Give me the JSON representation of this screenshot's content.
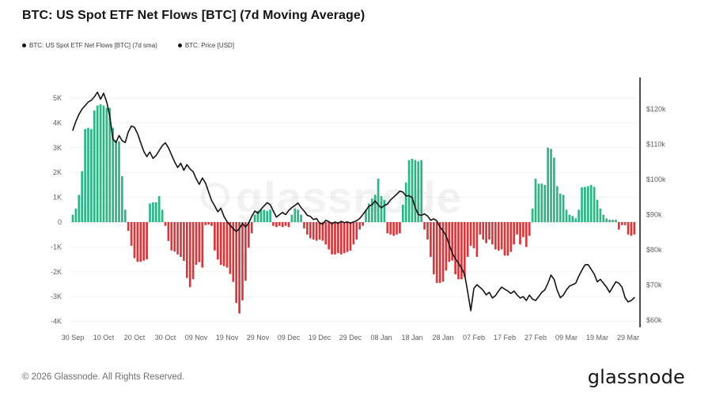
{
  "header": {
    "title": "BTC: US Spot ETF Net Flows [BTC] (7d Moving Average)"
  },
  "legend": [
    {
      "label": "BTC: US Spot ETF Net Flows [BTC] (7d sma)",
      "marker_color": "#111111"
    },
    {
      "label": "BTC: Price [USD]",
      "marker_color": "#111111"
    }
  ],
  "watermark": {
    "text": "glassnode"
  },
  "footer": {
    "copyright": "© 2026 Glassnode. All Rights Reserved.",
    "brand": "glassnode"
  },
  "colors": {
    "positive_bar": "#2eb586",
    "negative_bar": "#d23a3e",
    "price_line": "#141414",
    "axis_text": "#5f5f5f",
    "axis_spine": "#000000",
    "gridline": "#f2f2f2",
    "zero_gridline": "#e2e2e2"
  },
  "chart_data": {
    "type": "combo",
    "subtypes": [
      "bar",
      "line"
    ],
    "grid": "horizontal",
    "legend_position": "top-left",
    "x_axis": {
      "frequency": "daily",
      "points": 183,
      "tick_labels": [
        "30 Sep",
        "10 Oct",
        "20 Oct",
        "30 Oct",
        "09 Nov",
        "19 Nov",
        "29 Nov",
        "09 Dec",
        "19 Dec",
        "29 Dec",
        "08 Jan",
        "18 Jan",
        "28 Jan",
        "07 Feb",
        "17 Feb",
        "27 Feb",
        "09 Mar",
        "19 Mar",
        "29 Mar"
      ],
      "tick_day_index": [
        0,
        10,
        20,
        30,
        40,
        50,
        60,
        70,
        80,
        90,
        100,
        110,
        120,
        130,
        140,
        150,
        160,
        170,
        180
      ]
    },
    "left_axis": {
      "tick_labels": [
        "5K",
        "4K",
        "3K",
        "2K",
        "1K",
        "0",
        "-1K",
        "-2K",
        "-3K",
        "-4K"
      ],
      "tick_values_btc": [
        5000,
        4000,
        3000,
        2000,
        1000,
        0,
        -1000,
        -2000,
        -3000,
        -4000
      ]
    },
    "right_axis": {
      "tick_labels": [
        "$120k",
        "$110k",
        "$100k",
        "$90k",
        "$80k",
        "$70k",
        "$60k"
      ],
      "tick_values_usd": [
        120000,
        110000,
        100000,
        90000,
        80000,
        70000,
        60000
      ]
    },
    "series": [
      {
        "name": "BTC: US Spot ETF Net Flows [BTC] (7d sma)",
        "type": "bar",
        "axis": "left",
        "unit": "BTC",
        "values_btc": [
          300,
          550,
          1100,
          2050,
          3750,
          3800,
          3750,
          4500,
          4700,
          4750,
          4700,
          4600,
          4600,
          3800,
          3300,
          3250,
          1850,
          500,
          -350,
          -950,
          -1450,
          -1600,
          -1600,
          -1550,
          -1500,
          750,
          800,
          800,
          1050,
          500,
          -150,
          -760,
          -1140,
          -1190,
          -1300,
          -1400,
          -1560,
          -2250,
          -2620,
          -2300,
          -1720,
          -1610,
          -1830,
          -120,
          -100,
          -150,
          -1140,
          -1510,
          -1720,
          -1770,
          -1830,
          -2090,
          -2410,
          -3260,
          -3680,
          -3150,
          -2360,
          -1030,
          -450,
          300,
          450,
          500,
          500,
          450,
          500,
          -150,
          -200,
          -150,
          -200,
          -150,
          -200,
          300,
          550,
          500,
          300,
          -250,
          -500,
          -650,
          -700,
          -750,
          -700,
          -750,
          -900,
          -1100,
          -1300,
          -1300,
          -1250,
          -1300,
          -1250,
          -1200,
          -1150,
          -900,
          -700,
          -300,
          -150,
          500,
          750,
          950,
          1100,
          1750,
          1050,
          900,
          -450,
          -500,
          -550,
          -500,
          -450,
          700,
          1600,
          2500,
          2550,
          2500,
          2450,
          2500,
          -300,
          -700,
          -1400,
          -2100,
          -2450,
          -2450,
          -2400,
          -1950,
          -1600,
          -1550,
          -2100,
          -2300,
          -2300,
          -2200,
          -1400,
          -950,
          -1050,
          -1400,
          -500,
          -700,
          -850,
          -700,
          -900,
          -1100,
          -1150,
          -1100,
          -1350,
          -1350,
          -1200,
          -900,
          -500,
          -900,
          -600,
          -1000,
          -550,
          550,
          1750,
          1550,
          1550,
          1500,
          3000,
          2950,
          2600,
          1450,
          1150,
          1100,
          500,
          300,
          250,
          150,
          500,
          1400,
          1420,
          1450,
          1500,
          1420,
          900,
          550,
          300,
          150,
          100,
          100,
          100,
          -300,
          -120,
          -120,
          -500,
          -550,
          -500
        ]
      },
      {
        "name": "BTC: Price [USD]",
        "type": "line",
        "axis": "right",
        "unit": "USD (thousands)",
        "values_usd_k": [
          114,
          116.5,
          118.5,
          120,
          121,
          122,
          122.5,
          123.5,
          124.8,
          122.8,
          124.5,
          122,
          118,
          111.5,
          110.5,
          112.5,
          111,
          110.5,
          113.5,
          115.2,
          114.8,
          113,
          110.5,
          108,
          106.5,
          107.8,
          106,
          106.8,
          108.2,
          109.6,
          110.4,
          109,
          107,
          105,
          103.4,
          104.6,
          102.6,
          104.2,
          103,
          102.2,
          100.2,
          98.6,
          100.4,
          99,
          96.5,
          94,
          92.5,
          90.8,
          91.8,
          89.5,
          88,
          87,
          86,
          85.2,
          86,
          87.5,
          86.5,
          87.6,
          89.5,
          91,
          90.4,
          91.5,
          92.5,
          93.4,
          92.8,
          91,
          89.3,
          90,
          90.6,
          90,
          91.2,
          92,
          92.6,
          93.3,
          92,
          91,
          89.8,
          89.5,
          88.6,
          88.9,
          87.6,
          87.3,
          88.4,
          88,
          87.4,
          87.9,
          87.5,
          88.1,
          87.7,
          87.9,
          87.6,
          87.9,
          88.3,
          88.9,
          90,
          91.2,
          92.4,
          92.8,
          93.9,
          92.8,
          91.9,
          92.6,
          93,
          94.2,
          95,
          95.8,
          96.7,
          96.4,
          95.3,
          95.4,
          94.8,
          92,
          90,
          89.8,
          90.2,
          89.6,
          88.4,
          88.8,
          88.2,
          86.5,
          85.4,
          84,
          81.5,
          79,
          77.5,
          76.2,
          74.8,
          73,
          68,
          62.7,
          69,
          70.1,
          69.3,
          68.5,
          67.2,
          67.9,
          66.3,
          67,
          68.3,
          69.4,
          68.8,
          68.3,
          67.6,
          68.3,
          67.2,
          66.3,
          66.7,
          65.6,
          67.1,
          66,
          65.6,
          66.7,
          67.9,
          68.6,
          70.5,
          72.8,
          71.6,
          68.5,
          66.4,
          67.1,
          68.6,
          69.7,
          70.1,
          70.5,
          72.5,
          74.2,
          75.7,
          75.8,
          74.5,
          73.1,
          70.9,
          71.6,
          70.5,
          69.4,
          67.9,
          69.4,
          70.9,
          70.5,
          69.4,
          66.4,
          65.2,
          65.6,
          66.4
        ]
      }
    ]
  }
}
